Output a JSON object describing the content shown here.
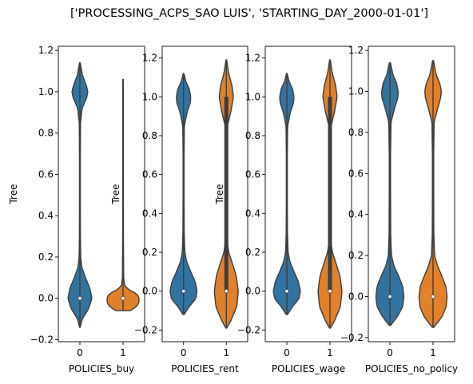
{
  "figure": {
    "title": "['PROCESSING_ACPS_SAO LUIS', 'STARTING_DAY_2000-01-01']"
  },
  "colors": {
    "series_0": "#3274a1",
    "series_1": "#e1812c",
    "inner_box": "#3d3d3d",
    "median_dot": "#ffffff"
  },
  "chart_data": [
    {
      "type": "violin",
      "xlabel": "POLICIES_buy",
      "ylabel": "Tree",
      "categories": [
        "0",
        "1"
      ],
      "ylim": [
        -0.21,
        1.22
      ],
      "yticks": [
        -0.2,
        0.0,
        0.2,
        0.4,
        0.6,
        0.8,
        1.0,
        1.2
      ],
      "ytick_labels": [
        "−0.2",
        "0.0",
        "0.2",
        "0.4",
        "0.6",
        "0.8",
        "1.0",
        "1.2"
      ],
      "violins": [
        {
          "category": "0",
          "median": 0.0,
          "q1": 0.0,
          "q3": 0.0,
          "min": -0.14,
          "max": 1.14
        },
        {
          "category": "1",
          "median": 0.0,
          "q1": 0.0,
          "q3": 0.0,
          "min": -0.06,
          "max": 1.06
        }
      ]
    },
    {
      "type": "violin",
      "xlabel": "POLICIES_rent",
      "ylabel": "Tree",
      "categories": [
        "0",
        "1"
      ],
      "ylim": [
        -0.26,
        1.26
      ],
      "yticks": [
        -0.2,
        0.0,
        0.2,
        0.4,
        0.6,
        0.8,
        1.0,
        1.2
      ],
      "ytick_labels": [
        "−0.2",
        "0.0",
        "0.2",
        "0.4",
        "0.6",
        "0.8",
        "1.0",
        "1.2"
      ],
      "violins": [
        {
          "category": "0",
          "median": 0.0,
          "q1": 0.0,
          "q3": 0.0,
          "min": -0.12,
          "max": 1.12
        },
        {
          "category": "1",
          "median": 0.0,
          "q1": 0.0,
          "q3": 1.0,
          "min": -0.19,
          "max": 1.19
        }
      ]
    },
    {
      "type": "violin",
      "xlabel": "POLICIES_wage",
      "ylabel": "Tree",
      "categories": [
        "0",
        "1"
      ],
      "ylim": [
        -0.26,
        1.26
      ],
      "yticks": [
        -0.2,
        0.0,
        0.2,
        0.4,
        0.6,
        0.8,
        1.0,
        1.2
      ],
      "ytick_labels": [
        "−0.2",
        "0.0",
        "0.2",
        "0.4",
        "0.6",
        "0.8",
        "1.0",
        "1.2"
      ],
      "violins": [
        {
          "category": "0",
          "median": 0.0,
          "q1": 0.0,
          "q3": 0.0,
          "min": -0.12,
          "max": 1.12
        },
        {
          "category": "1",
          "median": 0.0,
          "q1": 0.0,
          "q3": 1.0,
          "min": -0.19,
          "max": 1.19
        }
      ]
    },
    {
      "type": "violin",
      "xlabel": "POLICIES_no_policy",
      "ylabel": "",
      "categories": [
        "0",
        "1"
      ],
      "ylim": [
        -0.22,
        1.22
      ],
      "yticks": [
        -0.2,
        0.0,
        0.2,
        0.4,
        0.6,
        0.8,
        1.0,
        1.2
      ],
      "ytick_labels": [
        "−0.2",
        "0.0",
        "0.2",
        "0.4",
        "0.6",
        "0.8",
        "1.0",
        "1.2"
      ],
      "violins": [
        {
          "category": "0",
          "median": 0.0,
          "q1": 0.0,
          "q3": 0.0,
          "min": -0.14,
          "max": 1.14
        },
        {
          "category": "1",
          "median": 0.0,
          "q1": 0.0,
          "q3": 0.0,
          "min": -0.15,
          "max": 1.15
        }
      ]
    }
  ]
}
